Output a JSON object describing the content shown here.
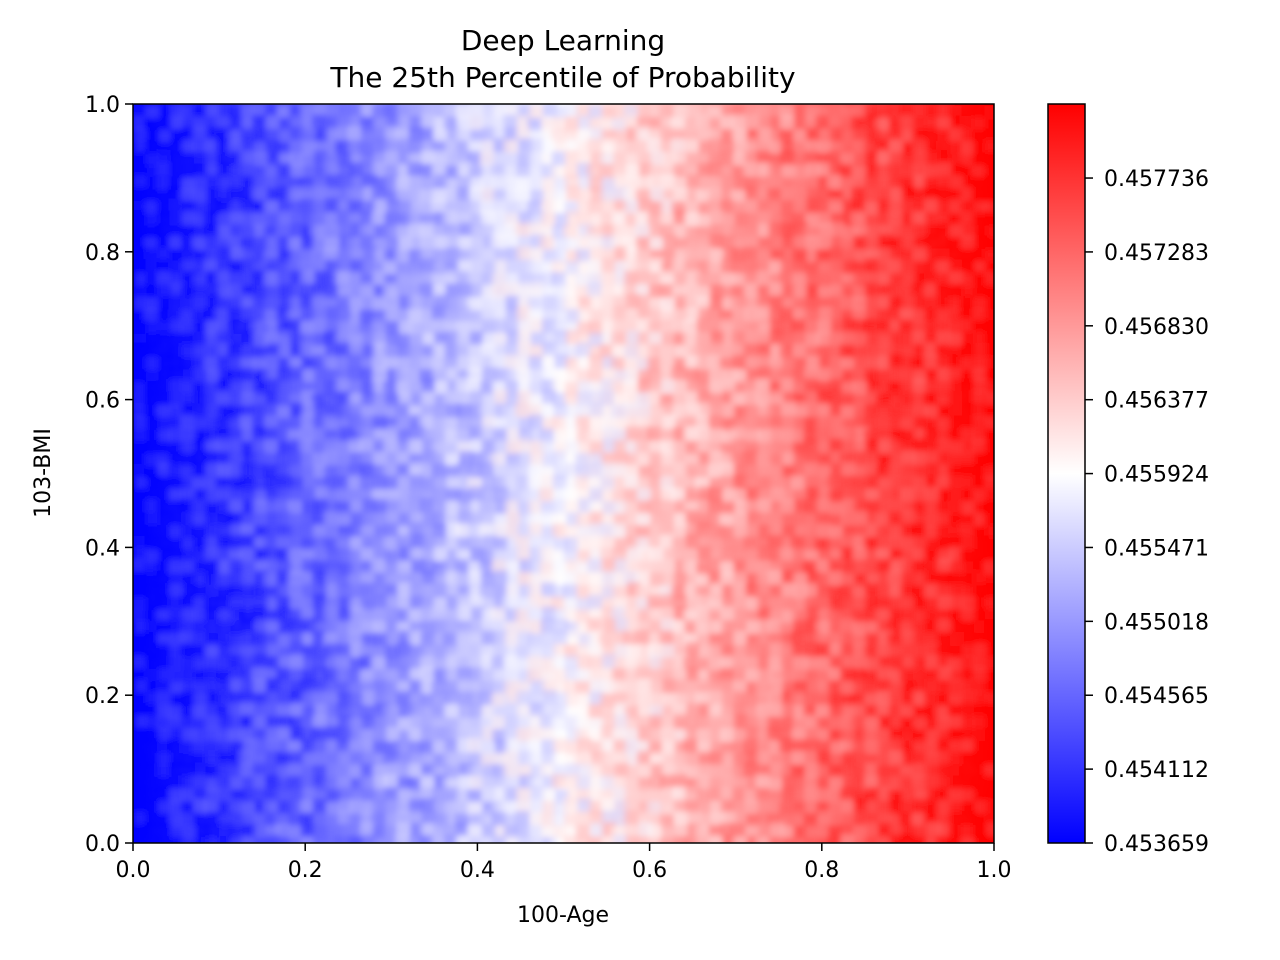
{
  "chart_data": {
    "type": "heatmap",
    "title": "Deep Learning",
    "subtitle": "The 25th Percentile of Probability",
    "xlabel": "100-Age",
    "ylabel": "103-BMI",
    "xlim": [
      0.0,
      1.0
    ],
    "ylim": [
      0.0,
      1.0
    ],
    "x_ticks": [
      "0.0",
      "0.2",
      "0.4",
      "0.6",
      "0.8",
      "1.0"
    ],
    "y_ticks": [
      "0.0",
      "0.2",
      "0.4",
      "0.6",
      "0.8",
      "1.0"
    ],
    "colormap": "bwr",
    "colorbar": {
      "min": 0.453659,
      "max": 0.45819,
      "ticks": [
        "0.453659",
        "0.454112",
        "0.454565",
        "0.455018",
        "0.455471",
        "0.455924",
        "0.456377",
        "0.456830",
        "0.457283",
        "0.457736"
      ]
    },
    "trend": "value increases roughly linearly with 100-Age from about 0.45366 at 0.0 to about 0.45819 at 1.0, with small noise",
    "grid": false,
    "colors": {
      "low": "#0000ff",
      "mid": "#ffffff",
      "high": "#ff0000"
    }
  }
}
